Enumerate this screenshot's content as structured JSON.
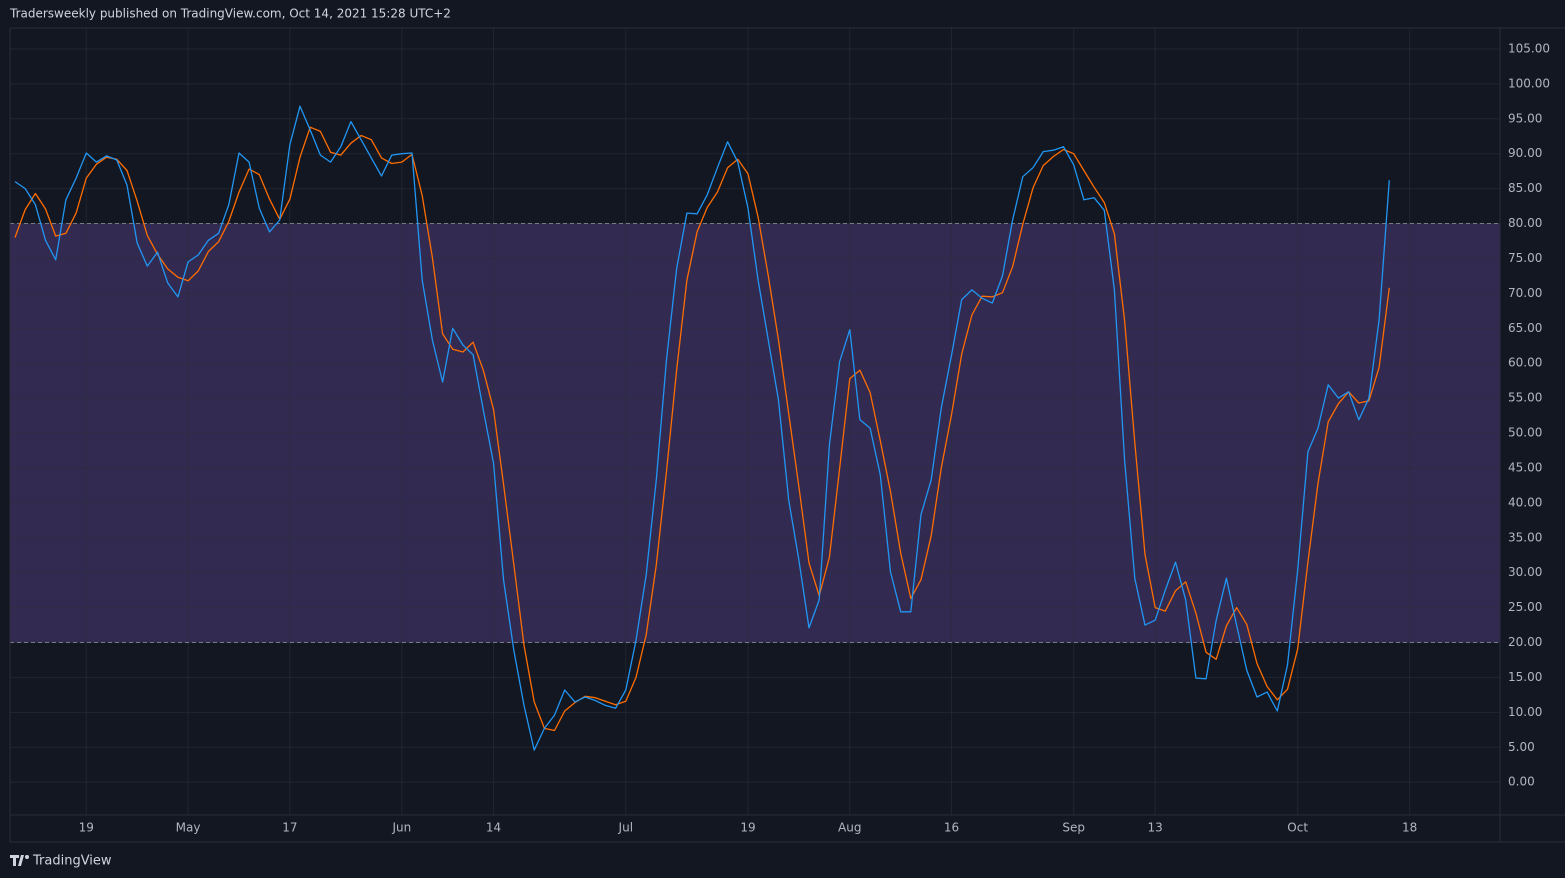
{
  "chart_data": {
    "type": "line",
    "header": "Tradersweekly published on TradingView.com, Oct 14, 2021 15:28 UTC+2",
    "footer": "TradingView",
    "categories": [
      null,
      null,
      null,
      null,
      null,
      null,
      null,
      "19",
      null,
      null,
      null,
      null,
      null,
      null,
      null,
      null,
      null,
      "May",
      null,
      null,
      null,
      null,
      null,
      null,
      null,
      null,
      null,
      "17",
      null,
      null,
      null,
      null,
      null,
      null,
      null,
      null,
      null,
      null,
      "Jun",
      null,
      null,
      null,
      null,
      null,
      null,
      null,
      null,
      "14",
      null,
      null,
      null,
      null,
      null,
      null,
      null,
      null,
      null,
      null,
      null,
      null,
      "Jul",
      null,
      null,
      null,
      null,
      null,
      null,
      null,
      null,
      null,
      null,
      null,
      "19",
      null,
      null,
      null,
      null,
      null,
      null,
      null,
      null,
      null,
      "Aug",
      null,
      null,
      null,
      null,
      null,
      null,
      null,
      null,
      null,
      "16",
      null,
      null,
      null,
      null,
      null,
      null,
      null,
      null,
      null,
      null,
      null,
      "Sep",
      null,
      null,
      null,
      null,
      null,
      null,
      null,
      "13",
      null,
      null,
      null,
      null,
      null,
      null,
      null,
      null,
      null,
      null,
      null,
      null,
      null,
      "Oct",
      null,
      null,
      null,
      null,
      null,
      null,
      null,
      null,
      null,
      null,
      "18"
    ],
    "series": [
      {
        "color": "#2196f3",
        "values": [
          86,
          85,
          82.7,
          77.6,
          74.8,
          83.4,
          86.5,
          90.1,
          88.8,
          89.7,
          89.1,
          85.5,
          77.2,
          73.9,
          75.9,
          71.5,
          69.5,
          74.5,
          75.5,
          77.6,
          78.6,
          82.7,
          90.1,
          88.8,
          82.2,
          78.8,
          80.5,
          91.3,
          96.8,
          93.4,
          89.8,
          88.8,
          91.0,
          94.6,
          92.0,
          89.4,
          86.8,
          89.8,
          90.0,
          90.1,
          71.9,
          63.3,
          57.3,
          65.0,
          62.6,
          61.2,
          53.3,
          45.7,
          28.9,
          18.9,
          11.0,
          4.6,
          7.7,
          9.6,
          13.2,
          11.5,
          12.2,
          11.7,
          11.0,
          10.6,
          13.2,
          20.3,
          29.7,
          43.3,
          60.5,
          73.6,
          81.5,
          81.4,
          84.1,
          88.0,
          91.7,
          88.8,
          82.2,
          71.9,
          63.3,
          54.7,
          40.4,
          31.8,
          22.1,
          26.1,
          48.3,
          60.2,
          64.8,
          51.9,
          50.7,
          44.0,
          30.1,
          24.4,
          24.4,
          38.3,
          43.3,
          53.7,
          61.2,
          69.1,
          70.5,
          69.3,
          68.6,
          72.5,
          80.5,
          86.7,
          88.0,
          90.3,
          90.5,
          91.0,
          88.4,
          83.4,
          83.7,
          81.9,
          70.5,
          46.1,
          29.2,
          22.5,
          23.2,
          27.5,
          31.5,
          26.1,
          14.9,
          14.8,
          23.2,
          29.2,
          22.5,
          16.0,
          12.2,
          12.9,
          10.2,
          16.8,
          30.4,
          47.3,
          50.7,
          56.9,
          55.0,
          55.9,
          51.9,
          55.0,
          66.2,
          86.2,
          null,
          null
        ]
      },
      {
        "color": "#ff6d00",
        "values": [
          78,
          82,
          84.3,
          82.1,
          78.2,
          78.6,
          81.5,
          86.5,
          88.5,
          89.5,
          89.2,
          87.6,
          83.2,
          78.3,
          75.6,
          73.5,
          72.3,
          71.8,
          73.2,
          76.0,
          77.4,
          80.3,
          84.5,
          87.8,
          87.0,
          83.5,
          80.6,
          83.5,
          89.5,
          93.8,
          93.2,
          90.2,
          89.8,
          91.5,
          92.6,
          92.0,
          89.4,
          88.6,
          88.8,
          89.9,
          84.0,
          75.1,
          64.2,
          62.0,
          61.6,
          63.0,
          59.0,
          53.4,
          42.6,
          31.2,
          19.6,
          11.5,
          7.7,
          7.4,
          10.2,
          11.4,
          12.3,
          12.1,
          11.6,
          11.1,
          11.6,
          15.0,
          21.1,
          31.1,
          44.5,
          59.1,
          71.9,
          78.8,
          82.3,
          84.5,
          88.0,
          89.2,
          87.1,
          80.9,
          72.5,
          63.3,
          52.8,
          42.3,
          31.4,
          26.7,
          32.2,
          44.9,
          57.8,
          59.0,
          55.8,
          48.9,
          41.6,
          32.8,
          26.3,
          29.0,
          35.3,
          45.1,
          52.7,
          61.3,
          66.9,
          69.6,
          69.5,
          70.1,
          73.8,
          79.9,
          85.1,
          88.3,
          89.6,
          90.6,
          90.0,
          87.6,
          85.2,
          83.0,
          78.5,
          66.1,
          48.6,
          32.6,
          25.0,
          24.5,
          27.4,
          28.7,
          24.2,
          18.6,
          17.6,
          22.4,
          25.0,
          22.6,
          17.0,
          13.7,
          11.8,
          13.3,
          19.1,
          31.5,
          42.8,
          51.6,
          54.2,
          55.9,
          54.3,
          54.6,
          59.4,
          70.8,
          null,
          null
        ]
      }
    ],
    "band": [
      20,
      80
    ],
    "band_color": "#7e57c2",
    "ylim": [
      -4.7,
      108
    ],
    "yticks": [
      {
        "value": 0,
        "label": "0.00"
      },
      {
        "value": 5,
        "label": "5.00"
      },
      {
        "value": 10,
        "label": "10.00"
      },
      {
        "value": 15,
        "label": "15.00"
      },
      {
        "value": 20,
        "label": "20.00"
      },
      {
        "value": 25,
        "label": "25.00"
      },
      {
        "value": 30,
        "label": "30.00"
      },
      {
        "value": 35,
        "label": "35.00"
      },
      {
        "value": 40,
        "label": "40.00"
      },
      {
        "value": 45,
        "label": "45.00"
      },
      {
        "value": 50,
        "label": "50.00"
      },
      {
        "value": 55,
        "label": "55.00"
      },
      {
        "value": 60,
        "label": "60.00"
      },
      {
        "value": 65,
        "label": "65.00"
      },
      {
        "value": 70,
        "label": "70.00"
      },
      {
        "value": 75,
        "label": "75.00"
      },
      {
        "value": 80,
        "label": "80.00"
      },
      {
        "value": 85,
        "label": "85.00"
      },
      {
        "value": 90,
        "label": "90.00"
      },
      {
        "value": 95,
        "label": "95.00"
      },
      {
        "value": 100,
        "label": "100.00"
      },
      {
        "value": 105,
        "label": "105.00"
      }
    ],
    "grid": true
  }
}
